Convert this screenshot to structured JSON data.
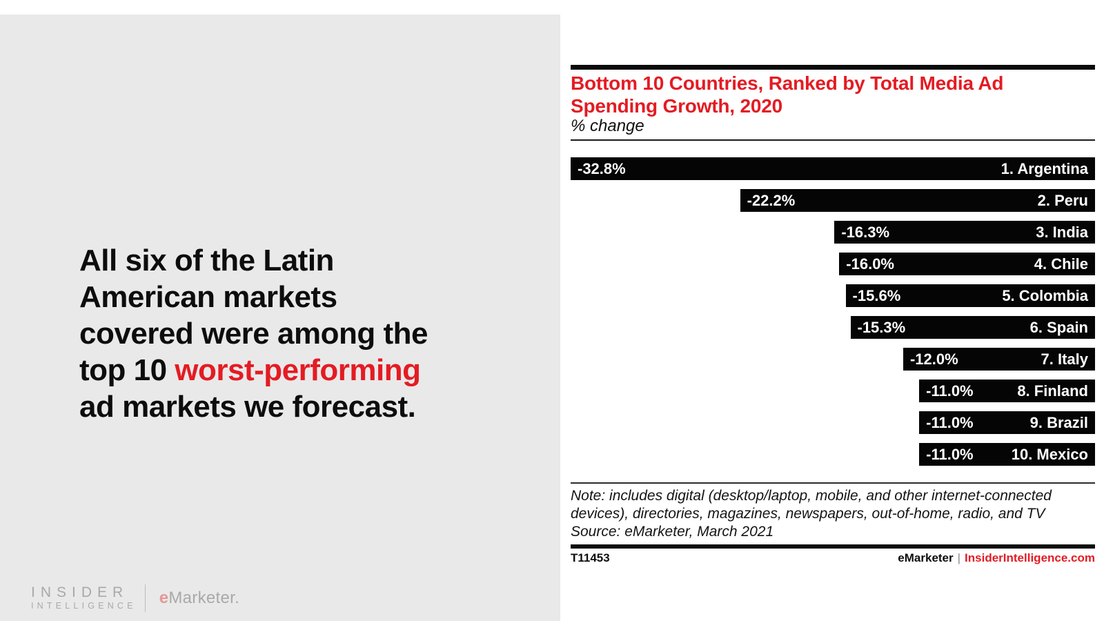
{
  "colors": {
    "accent_red": "#e41b23",
    "bar_black": "#050505",
    "panel_gray": "#e9e9e9",
    "logo_gray": "#a9a9a9"
  },
  "left_panel": {
    "headline_lines": [
      [
        {
          "text": "All six of the Latin",
          "red": false
        }
      ],
      [
        {
          "text": "American markets",
          "red": false
        }
      ],
      [
        {
          "text": "covered were among the",
          "red": false
        }
      ],
      [
        {
          "text": "top 10 ",
          "red": false
        },
        {
          "text": "worst-performing",
          "red": true
        }
      ],
      [
        {
          "text": "ad markets we forecast.",
          "red": false
        }
      ]
    ],
    "logos": {
      "insider_line1": "INSIDER",
      "insider_line2": "INTELLIGENCE",
      "emarketer_e": "e",
      "emarketer_rest": "Marketer."
    }
  },
  "chart": {
    "title": "Bottom 10 Countries, Ranked by Total Media Ad Spending Growth, 2020",
    "subtitle": "% change",
    "note_lines": [
      "Note: includes digital (desktop/laptop, mobile, and other internet-connected",
      "devices), directories, magazines, newspapers, out-of-home, radio, and TV",
      "Source: eMarketer, March 2021"
    ],
    "chart_id": "T11453",
    "footer_brand": "eMarketer",
    "footer_separator": "|",
    "footer_site": "InsiderIntelligence.com"
  },
  "chart_data": {
    "type": "bar",
    "orientation": "horizontal",
    "title": "Bottom 10 Countries, Ranked by Total Media Ad Spending Growth, 2020",
    "subtitle_unit": "% change",
    "categories": [
      "1. Argentina",
      "2. Peru",
      "3. India",
      "4. Chile",
      "5. Colombia",
      "6. Spain",
      "7. Italy",
      "8. Finland",
      "9. Brazil",
      "10. Mexico"
    ],
    "values": [
      -32.8,
      -22.2,
      -16.3,
      -16.0,
      -15.6,
      -15.3,
      -12.0,
      -11.0,
      -11.0,
      -11.0
    ],
    "value_labels": [
      "-32.8%",
      "-22.2%",
      "-16.3%",
      "-16.0%",
      "-15.6%",
      "-15.3%",
      "-12.0%",
      "-11.0%",
      "-11.0%",
      "-11.0%"
    ],
    "xlim": [
      -32.8,
      0
    ],
    "bars_right_aligned": true,
    "bar_color": "#050505",
    "grid": false,
    "legend": false,
    "source": "Source: eMarketer, March 2021"
  }
}
